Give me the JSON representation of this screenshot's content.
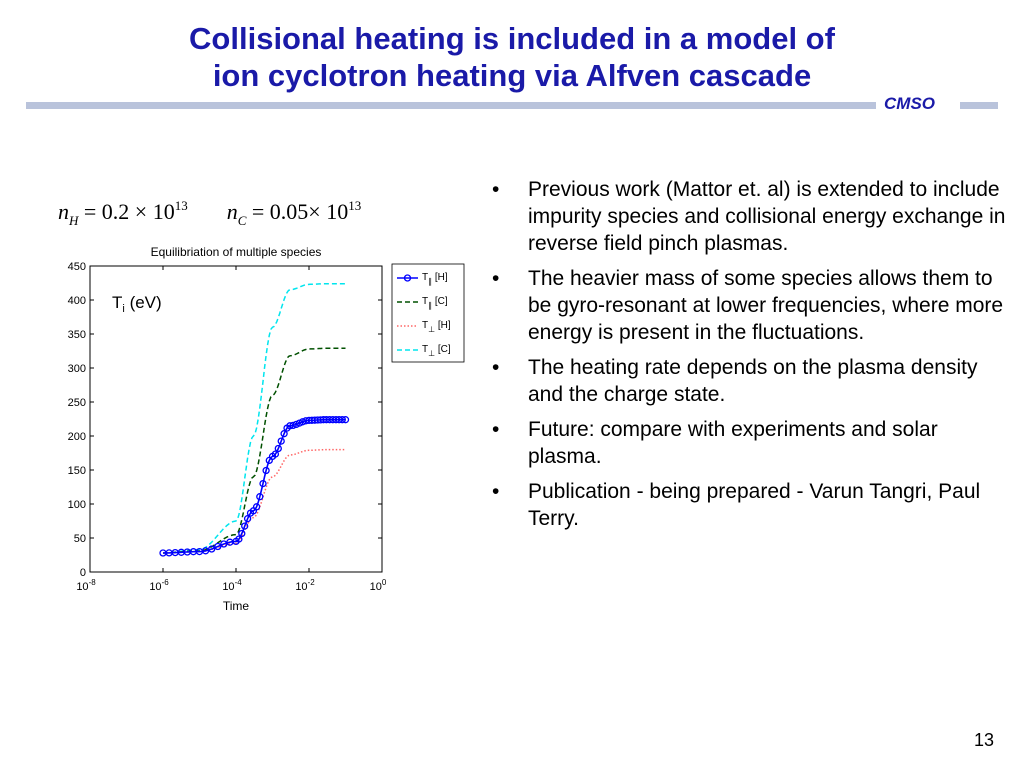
{
  "title": {
    "line1": "Collisional heating is included in a model of",
    "line2": "ion cyclotron heating via Alfven cascade"
  },
  "logo": "CMSO",
  "formula": {
    "n": "n",
    "h_sub": "H",
    "h_value": "= 0.2 × 10",
    "h_exp": "13",
    "c_sub": "C",
    "c_value": "= 0.05× 10",
    "c_exp": "13"
  },
  "bullets": [
    "Previous work (Mattor et. al)  is extended to include impurity species and collisional energy exchange in reverse field pinch plasmas.",
    "The heavier mass of some species allows them to be gyro-resonant at lower frequencies, where more energy is present in the fluctuations.",
    "The heating rate depends on the plasma density and the charge state.",
    "Future: compare with experiments and solar plasma.",
    "Publication - being prepared - Varun Tangri, Paul Terry."
  ],
  "bullet_symbol": "•",
  "page_number": "13",
  "chart_data": {
    "type": "line",
    "title": "Equilibriation of multiple species",
    "xlabel": "Time",
    "ylabel": "",
    "annotation": "T_i (eV)",
    "x_scale": "log",
    "xlim": [
      1e-08,
      1
    ],
    "ylim": [
      0,
      450
    ],
    "xticks": [
      "10^-8",
      "10^-6",
      "10^-4",
      "10^-2",
      "10^0"
    ],
    "yticks": [
      0,
      50,
      100,
      150,
      200,
      250,
      300,
      350,
      400,
      450
    ],
    "legend_position": "top-right",
    "x": [
      1e-06,
      1e-05,
      0.0001,
      0.0003,
      0.001,
      0.003,
      0.01,
      0.03,
      0.1
    ],
    "series": [
      {
        "name": "T_∥ [H]",
        "color": "#0000ff",
        "style": "solid-circle",
        "values": [
          28,
          30,
          45,
          90,
          170,
          215,
          223,
          224,
          224
        ]
      },
      {
        "name": "T_∥ [C]",
        "color": "#005000",
        "style": "dashed",
        "values": [
          28,
          31,
          55,
          140,
          260,
          318,
          328,
          329,
          329
        ]
      },
      {
        "name": "T_⊥ [H]",
        "color": "#ff6666",
        "style": "dotted",
        "values": [
          28,
          30,
          42,
          80,
          140,
          172,
          179,
          180,
          180
        ]
      },
      {
        "name": "T_⊥ [C]",
        "color": "#00e5ee",
        "style": "dashed",
        "values": [
          28,
          33,
          75,
          200,
          360,
          415,
          423,
          424,
          424
        ]
      }
    ]
  }
}
